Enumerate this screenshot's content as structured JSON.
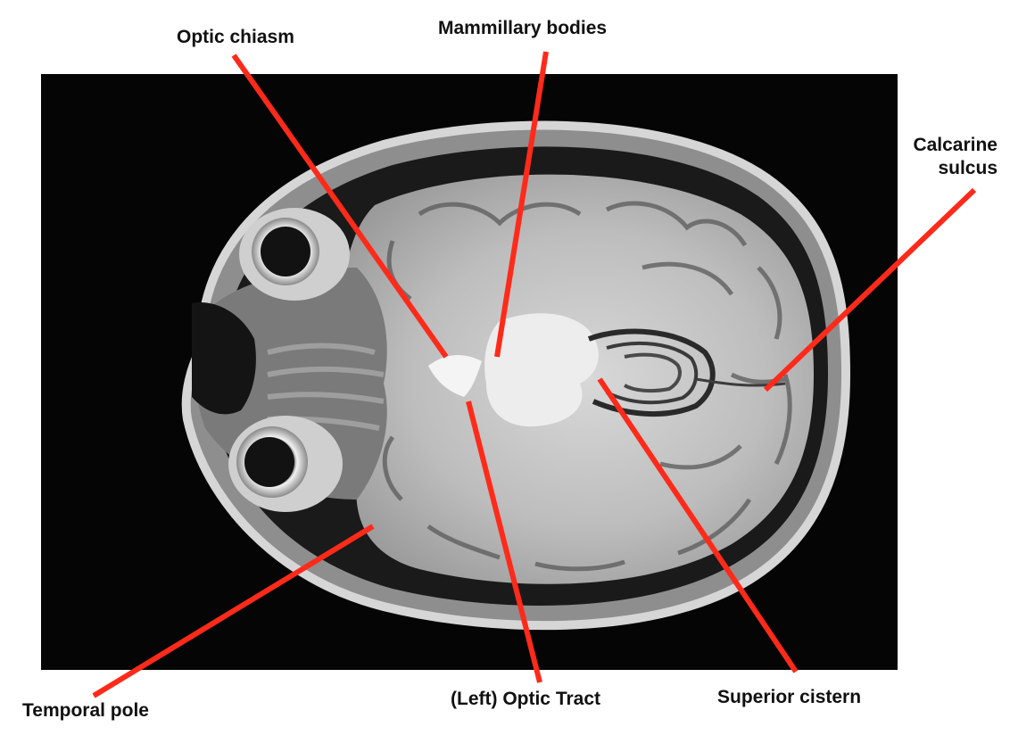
{
  "colors": {
    "background": "#ffffff",
    "panel": "#050505",
    "leader_line": "#ff2a1a",
    "label_text": "#111111"
  },
  "labels": {
    "optic_chiasm": "Optic chiasm",
    "mammillary_bodies": "Mammillary bodies",
    "calcarine_line1": "Calcarine",
    "calcarine_line2": "sulcus",
    "temporal_pole": "Temporal pole",
    "left_optic_tract": "(Left) Optic Tract",
    "superior_cistern": "Superior cistern"
  }
}
